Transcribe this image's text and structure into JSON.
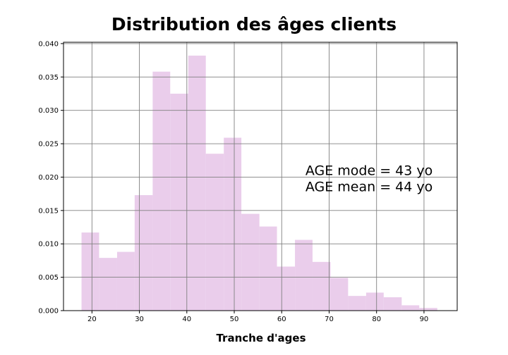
{
  "chart_data": {
    "type": "bar",
    "title": "Distribution des âges clients",
    "xlabel": "Tranche d'ages",
    "ylabel": "",
    "xlim": [
      14,
      97
    ],
    "ylim": [
      0,
      0.0402
    ],
    "grid": true,
    "x_ticks": [
      20,
      30,
      40,
      50,
      60,
      70,
      80,
      90
    ],
    "y_ticks": [
      "0.000",
      "0.005",
      "0.010",
      "0.015",
      "0.020",
      "0.025",
      "0.030",
      "0.035",
      "0.040"
    ],
    "bar_color": "#eacdeb",
    "bins": [
      {
        "x0": 17.8,
        "x1": 21.5,
        "density": 0.0117
      },
      {
        "x0": 21.5,
        "x1": 25.3,
        "density": 0.0079
      },
      {
        "x0": 25.3,
        "x1": 29.0,
        "density": 0.0088
      },
      {
        "x0": 29.0,
        "x1": 32.8,
        "density": 0.0173
      },
      {
        "x0": 32.8,
        "x1": 36.5,
        "density": 0.0358
      },
      {
        "x0": 36.5,
        "x1": 40.3,
        "density": 0.0325
      },
      {
        "x0": 40.3,
        "x1": 44.0,
        "density": 0.0382
      },
      {
        "x0": 44.0,
        "x1": 47.8,
        "density": 0.0235
      },
      {
        "x0": 47.8,
        "x1": 51.5,
        "density": 0.0259
      },
      {
        "x0": 51.5,
        "x1": 55.3,
        "density": 0.0145
      },
      {
        "x0": 55.3,
        "x1": 59.0,
        "density": 0.0126
      },
      {
        "x0": 59.0,
        "x1": 62.8,
        "density": 0.0066
      },
      {
        "x0": 62.8,
        "x1": 66.5,
        "density": 0.0106
      },
      {
        "x0": 66.5,
        "x1": 70.3,
        "density": 0.0073
      },
      {
        "x0": 70.3,
        "x1": 74.0,
        "density": 0.0049
      },
      {
        "x0": 74.0,
        "x1": 77.8,
        "density": 0.0022
      },
      {
        "x0": 77.8,
        "x1": 81.5,
        "density": 0.0027
      },
      {
        "x0": 81.5,
        "x1": 85.3,
        "density": 0.002
      },
      {
        "x0": 85.3,
        "x1": 89.0,
        "density": 0.0008
      },
      {
        "x0": 89.0,
        "x1": 92.8,
        "density": 0.0004
      }
    ],
    "annotations": [
      "AGE mode = 43 yo",
      "AGE mean = 44 yo"
    ],
    "annotation_position": [
      65,
      0.0203
    ]
  }
}
